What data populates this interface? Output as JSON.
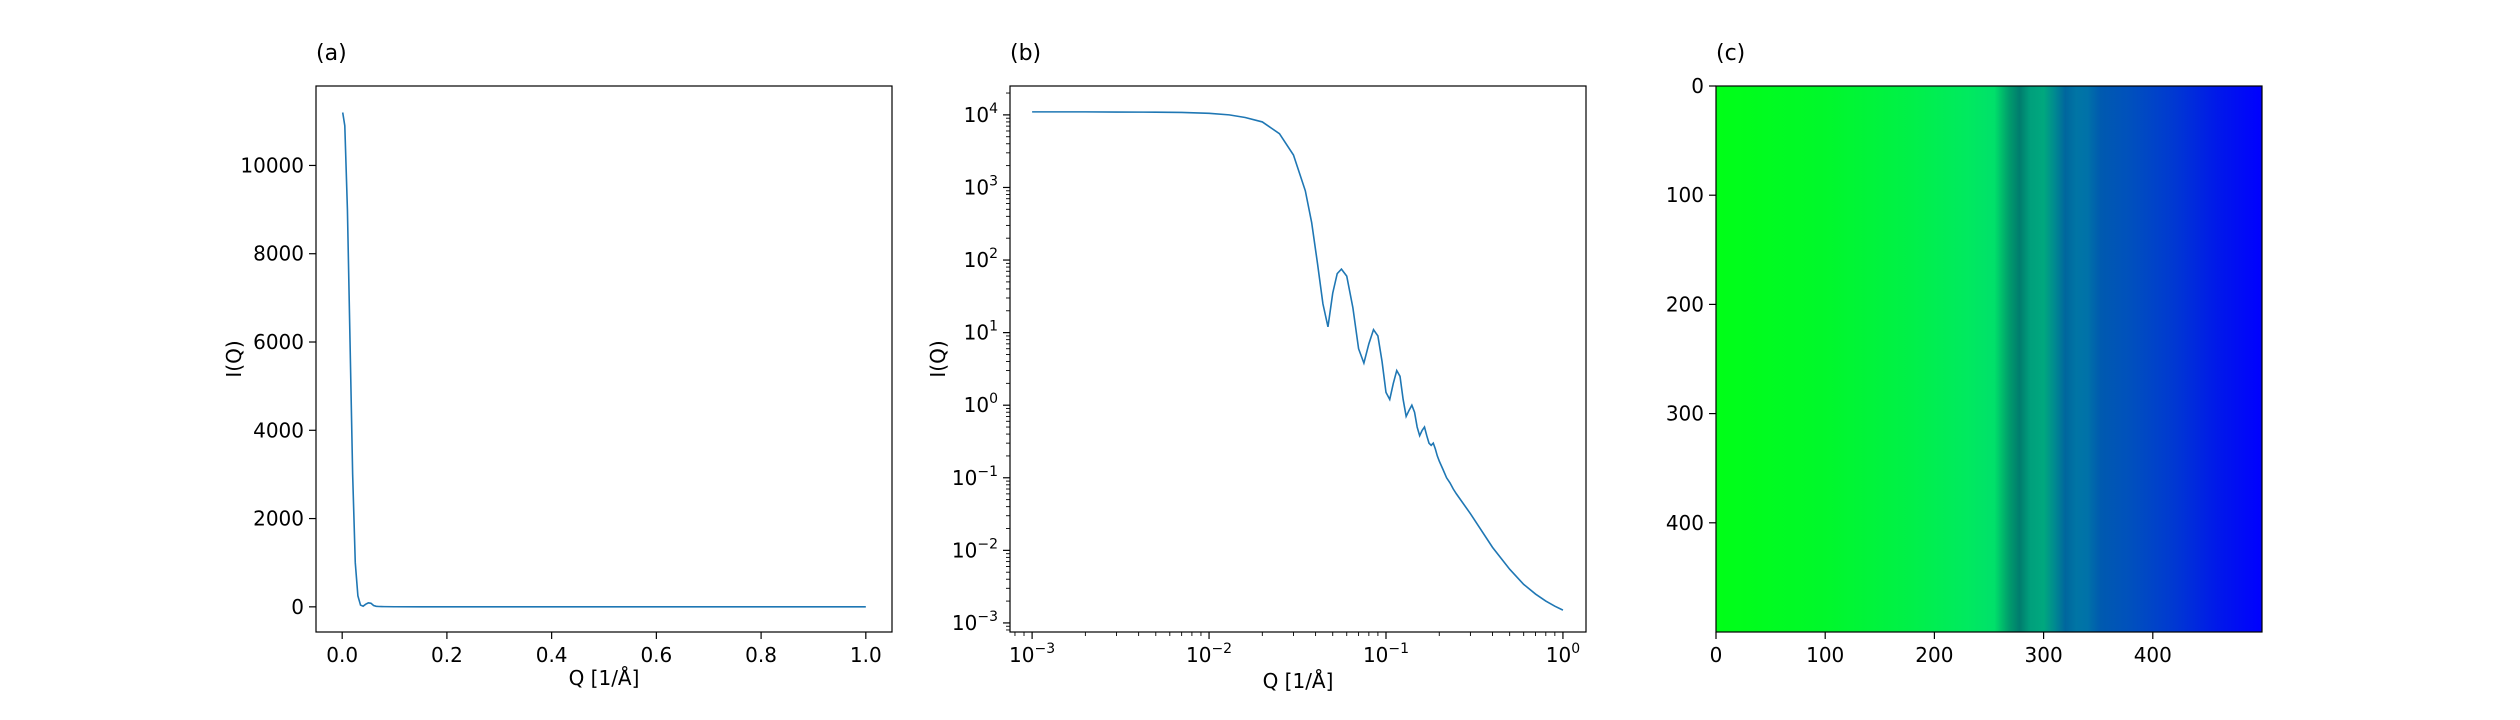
{
  "chart_data": [
    {
      "type": "line",
      "title": "(a)",
      "xlabel": "Q [1/Å]",
      "ylabel": "I(Q)",
      "xscale": "linear",
      "yscale": "linear",
      "xlim": [
        -0.05,
        1.05
      ],
      "ylim": [
        -570,
        11800
      ],
      "xticks": [
        0.0,
        0.2,
        0.4,
        0.6,
        0.8,
        1.0
      ],
      "xtick_labels": [
        "0.0",
        "0.2",
        "0.4",
        "0.6",
        "0.8",
        "1.0"
      ],
      "yticks": [
        0,
        2000,
        4000,
        6000,
        8000,
        10000
      ],
      "ytick_labels": [
        "0",
        "2000",
        "4000",
        "6000",
        "8000",
        "10000"
      ],
      "grid": false,
      "color": "#1f77b4",
      "series": [
        {
          "x": [
            0.001,
            0.005,
            0.01,
            0.015,
            0.02,
            0.025,
            0.03,
            0.035,
            0.04,
            0.045,
            0.05,
            0.055,
            0.06,
            0.065,
            0.07,
            0.08,
            0.1,
            0.15,
            0.2,
            0.3,
            0.4,
            0.5,
            0.6,
            0.7,
            0.8,
            0.9,
            1.0
          ],
          "y": [
            11200,
            10900,
            9000,
            6000,
            3000,
            1000,
            250,
            40,
            15,
            60,
            90,
            80,
            30,
            12,
            8,
            5,
            2,
            0.5,
            0.2,
            0.05,
            0.02,
            0.01,
            0.005,
            0.004,
            0.003,
            0.002,
            0.0015
          ]
        }
      ]
    },
    {
      "type": "line",
      "title": "(b)",
      "xlabel": "Q [1/Å]",
      "ylabel": "I(Q)",
      "xscale": "log",
      "yscale": "log",
      "xlim": [
        0.00075,
        1.35
      ],
      "ylim": [
        0.00075,
        25000
      ],
      "xticks": [
        0.001,
        0.01,
        0.1,
        1
      ],
      "xtick_labels": [
        [
          "10",
          "−3"
        ],
        [
          "10",
          "−2"
        ],
        [
          "10",
          "−1"
        ],
        [
          "10",
          "0"
        ]
      ],
      "yticks": [
        0.001,
        0.01,
        0.1,
        1,
        10,
        100,
        1000,
        10000
      ],
      "ytick_labels": [
        [
          "10",
          "−3"
        ],
        [
          "10",
          "−2"
        ],
        [
          "10",
          "−1"
        ],
        [
          "10",
          "0"
        ],
        [
          "10",
          "1"
        ],
        [
          "10",
          "2"
        ],
        [
          "10",
          "3"
        ],
        [
          "10",
          "4"
        ]
      ],
      "grid": false,
      "color": "#1f77b4",
      "series": [
        {
          "x": [
            0.001,
            0.002,
            0.003,
            0.005,
            0.007,
            0.01,
            0.013,
            0.016,
            0.02,
            0.025,
            0.03,
            0.035,
            0.038,
            0.041,
            0.044,
            0.047,
            0.05,
            0.053,
            0.056,
            0.06,
            0.065,
            0.07,
            0.075,
            0.08,
            0.085,
            0.09,
            0.095,
            0.1,
            0.105,
            0.11,
            0.115,
            0.12,
            0.125,
            0.13,
            0.135,
            0.14,
            0.145,
            0.15,
            0.155,
            0.16,
            0.165,
            0.17,
            0.175,
            0.18,
            0.185,
            0.19,
            0.195,
            0.2,
            0.21,
            0.22,
            0.23,
            0.24,
            0.25,
            0.3,
            0.4,
            0.5,
            0.6,
            0.7,
            0.8,
            0.9,
            1.0
          ],
          "y": [
            11000,
            11000,
            10950,
            10900,
            10800,
            10500,
            10000,
            9200,
            8000,
            5500,
            2800,
            900,
            330,
            90,
            25,
            12,
            35,
            65,
            75,
            60,
            22,
            6,
            3.8,
            7,
            11,
            9,
            4,
            1.5,
            1.2,
            2,
            3,
            2.5,
            1.2,
            0.7,
            0.85,
            1.0,
            0.8,
            0.5,
            0.38,
            0.45,
            0.5,
            0.38,
            0.3,
            0.28,
            0.3,
            0.25,
            0.2,
            0.17,
            0.13,
            0.1,
            0.085,
            0.07,
            0.06,
            0.032,
            0.011,
            0.0055,
            0.0034,
            0.0025,
            0.002,
            0.0017,
            0.0015
          ]
        }
      ]
    },
    {
      "type": "heatmap",
      "title": "(c)",
      "xlabel": "",
      "ylabel": "",
      "xlim": [
        0,
        500
      ],
      "ylim": [
        500,
        0
      ],
      "xticks": [
        0,
        100,
        200,
        300,
        400
      ],
      "xtick_labels": [
        "0",
        "100",
        "200",
        "300",
        "400"
      ],
      "yticks": [
        0,
        100,
        200,
        300,
        400
      ],
      "ytick_labels": [
        "0",
        "100",
        "200",
        "300",
        "400"
      ],
      "colormap": "green-to-blue, varies along columns",
      "color_stops": [
        {
          "col": 0,
          "color": "#00ff17"
        },
        {
          "col": 100,
          "color": "#00f82b"
        },
        {
          "col": 180,
          "color": "#00f049"
        },
        {
          "col": 230,
          "color": "#00ea5f"
        },
        {
          "col": 255,
          "color": "#00e06a"
        },
        {
          "col": 268,
          "color": "#009e6c"
        },
        {
          "col": 278,
          "color": "#007c6e"
        },
        {
          "col": 288,
          "color": "#00a07c"
        },
        {
          "col": 300,
          "color": "#00a87e"
        },
        {
          "col": 310,
          "color": "#008a90"
        },
        {
          "col": 320,
          "color": "#00669e"
        },
        {
          "col": 330,
          "color": "#0075a5"
        },
        {
          "col": 340,
          "color": "#0072a8"
        },
        {
          "col": 352,
          "color": "#005aaf"
        },
        {
          "col": 380,
          "color": "#0050bd"
        },
        {
          "col": 420,
          "color": "#0038d2"
        },
        {
          "col": 460,
          "color": "#0018ea"
        },
        {
          "col": 500,
          "color": "#0000ff"
        }
      ]
    }
  ]
}
